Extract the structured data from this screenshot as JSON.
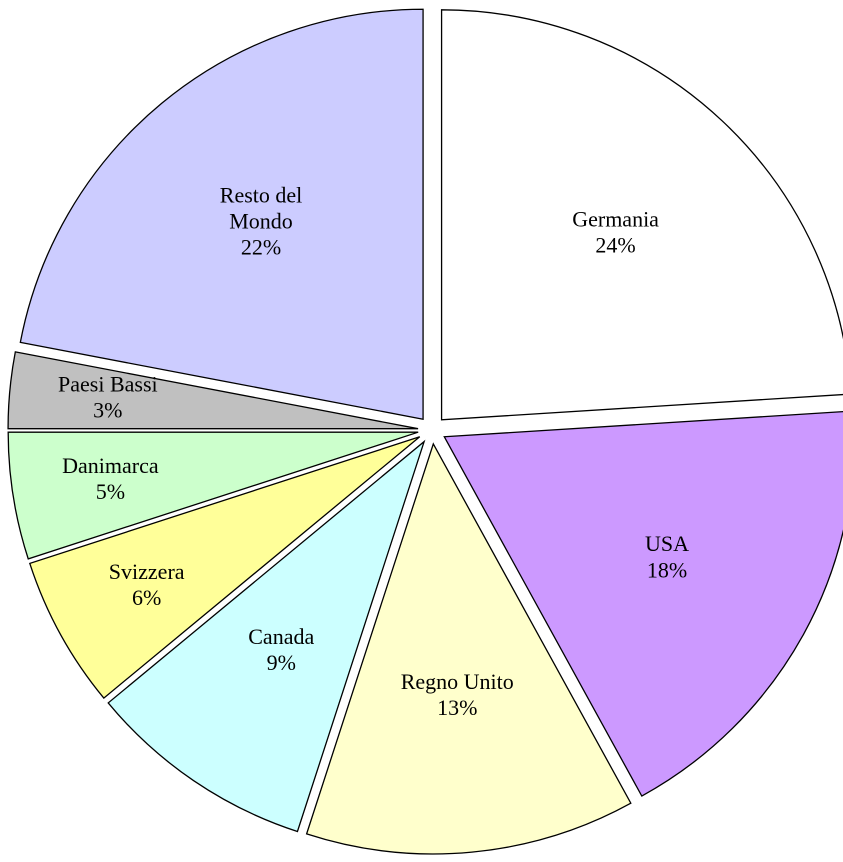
{
  "chart_data": {
    "type": "pie",
    "categories": [
      "Germania",
      "USA",
      "Regno Unito",
      "Canada",
      "Svizzera",
      "Danimarca",
      "Paesi Bassi",
      "Resto del Mondo"
    ],
    "values": [
      24,
      18,
      13,
      9,
      6,
      5,
      3,
      22
    ],
    "value_labels": [
      "24%",
      "18%",
      "13%",
      "9%",
      "6%",
      "5%",
      "3%",
      "22%"
    ],
    "colors": [
      "#ffffff",
      "#cc99ff",
      "#ffffcc",
      "#ccffff",
      "#ffff99",
      "#ccffcc",
      "#c0c0c0",
      "#ccccff"
    ],
    "exploded": true
  }
}
